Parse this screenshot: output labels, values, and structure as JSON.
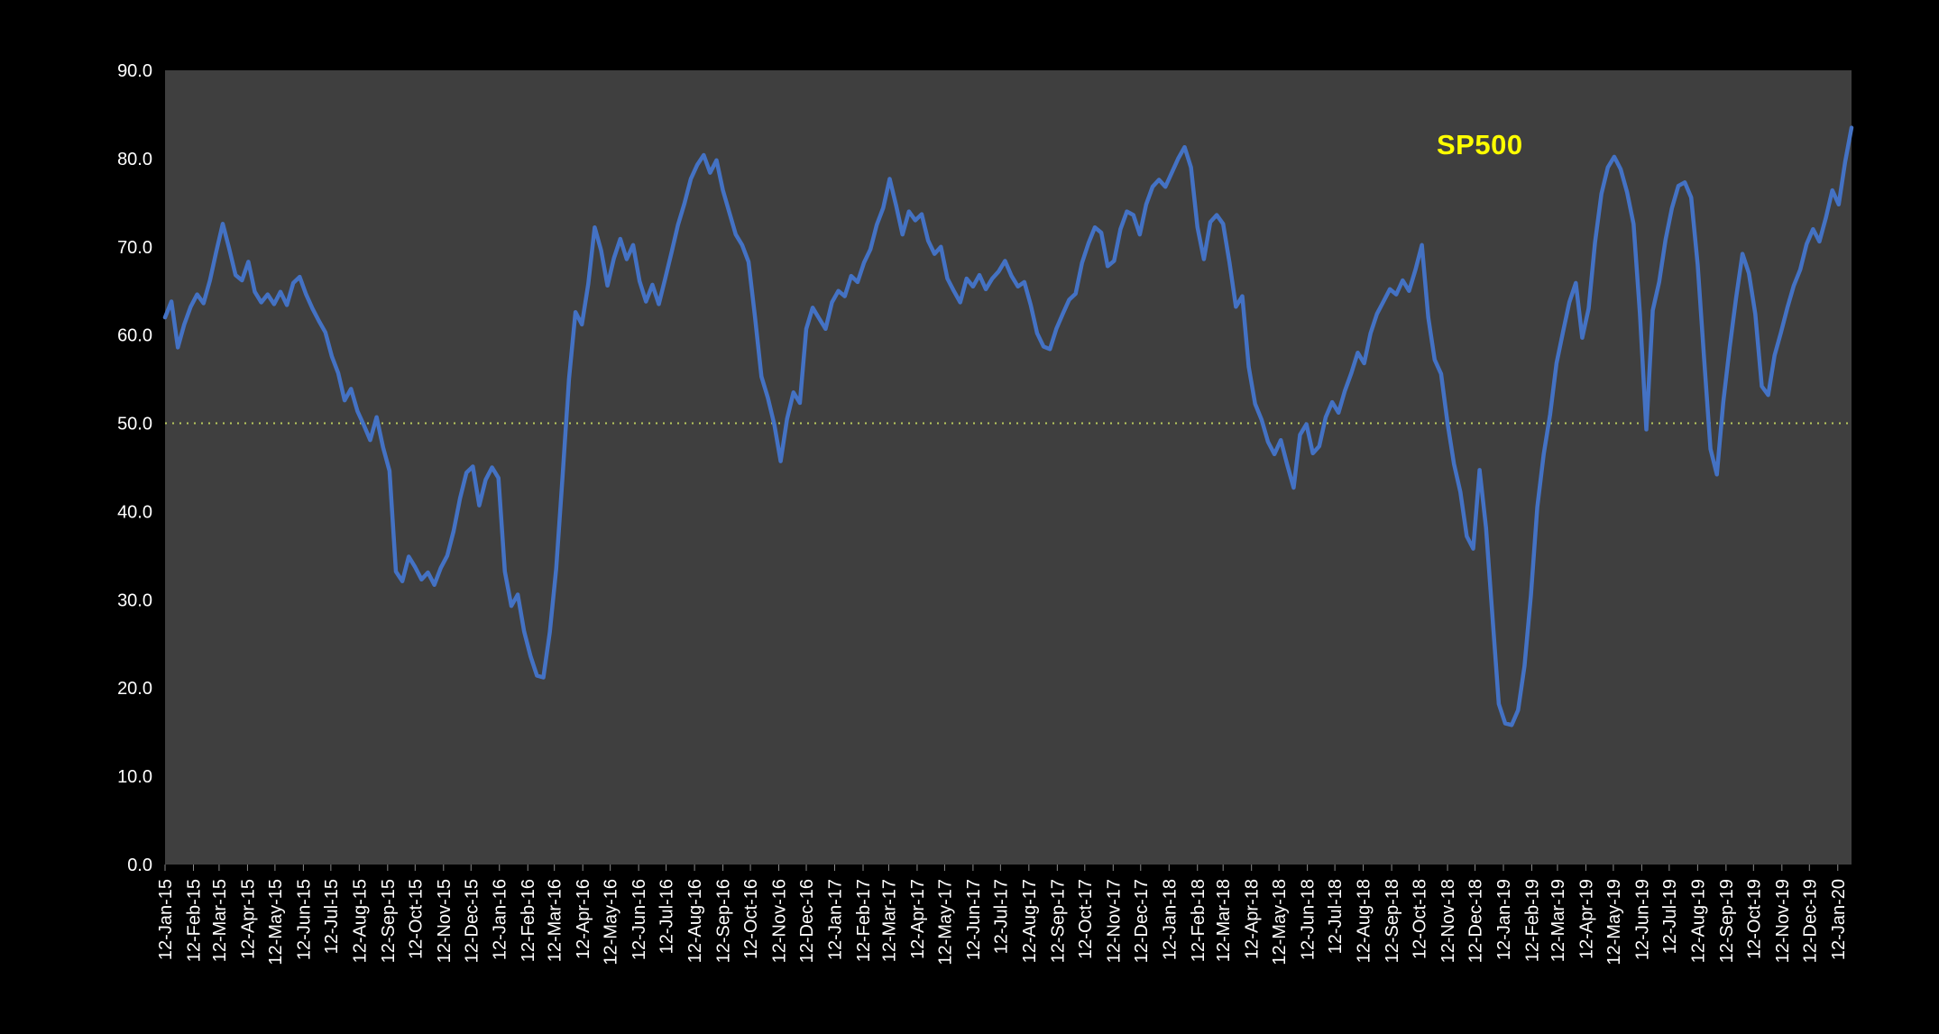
{
  "chart_data": {
    "type": "line",
    "title": "",
    "ylim": [
      0,
      90
    ],
    "outer_bg": "#000000",
    "plot_bg": "#3F3F3F",
    "tick_label_color": "#FFFFFF",
    "tick_mark_color": "#8A8A8A",
    "legend_position": "inside-top-right",
    "grid": "off",
    "series_label": {
      "text": "SP500",
      "color": "#FFFF00"
    },
    "reference_line": {
      "value": 50.0,
      "color": "#B9C95E",
      "style": "dotted"
    },
    "y_tick_labels": [
      "0.0",
      "10.0",
      "20.0",
      "30.0",
      "40.0",
      "50.0",
      "60.0",
      "70.0",
      "80.0",
      "90.0"
    ],
    "x_tick_labels": [
      "12-Jan-15",
      "12-Feb-15",
      "12-Mar-15",
      "12-Apr-15",
      "12-May-15",
      "12-Jun-15",
      "12-Jul-15",
      "12-Aug-15",
      "12-Sep-15",
      "12-Oct-15",
      "12-Nov-15",
      "12-Dec-15",
      "12-Jan-16",
      "12-Feb-16",
      "12-Mar-16",
      "12-Apr-16",
      "12-May-16",
      "12-Jun-16",
      "12-Jul-16",
      "12-Aug-16",
      "12-Sep-16",
      "12-Oct-16",
      "12-Nov-16",
      "12-Dec-16",
      "12-Jan-17",
      "12-Feb-17",
      "12-Mar-17",
      "12-Apr-17",
      "12-May-17",
      "12-Jun-17",
      "12-Jul-17",
      "12-Aug-17",
      "12-Sep-17",
      "12-Oct-17",
      "12-Nov-17",
      "12-Dec-17",
      "12-Jan-18",
      "12-Feb-18",
      "12-Mar-18",
      "12-Apr-18",
      "12-May-18",
      "12-Jun-18",
      "12-Jul-18",
      "12-Aug-18",
      "12-Sep-18",
      "12-Oct-18",
      "12-Nov-18",
      "12-Dec-18",
      "12-Jan-19",
      "12-Feb-19",
      "12-Mar-19",
      "12-Apr-19",
      "12-May-19",
      "12-Jun-19",
      "12-Jul-19",
      "12-Aug-19",
      "12-Sep-19",
      "12-Oct-19",
      "12-Nov-19",
      "12-Dec-19",
      "12-Jan-20"
    ],
    "series": [
      {
        "name": "SP500",
        "color": "#4472C4",
        "start_date": "2015-01-12",
        "step_days": 7,
        "values": [
          62.0,
          63.8,
          58.6,
          61.2,
          63.2,
          64.6,
          63.6,
          66.2,
          69.5,
          72.6,
          69.8,
          66.8,
          66.2,
          68.3,
          64.9,
          63.7,
          64.6,
          63.5,
          64.9,
          63.4,
          65.9,
          66.6,
          64.6,
          63.0,
          61.6,
          60.3,
          57.6,
          55.7,
          52.6,
          53.9,
          51.4,
          49.8,
          48.1,
          50.7,
          47.3,
          44.6,
          33.2,
          32.1,
          34.9,
          33.7,
          32.3,
          33.1,
          31.7,
          33.6,
          35.0,
          37.8,
          41.5,
          44.4,
          45.1,
          40.7,
          43.6,
          45.0,
          43.8,
          33.2,
          29.3,
          30.6,
          26.4,
          23.6,
          21.4,
          21.2,
          26.3,
          33.5,
          44.0,
          55.0,
          62.6,
          61.2,
          65.8,
          72.2,
          69.6,
          65.6,
          68.7,
          70.9,
          68.6,
          70.2,
          66.1,
          63.8,
          65.7,
          63.5,
          66.4,
          69.4,
          72.5,
          74.9,
          77.7,
          79.3,
          80.4,
          78.4,
          79.8,
          76.4,
          73.9,
          71.4,
          70.2,
          68.3,
          62.1,
          55.3,
          52.9,
          49.9,
          45.7,
          50.5,
          53.5,
          52.3,
          60.7,
          63.1,
          61.9,
          60.7,
          63.7,
          65.0,
          64.4,
          66.7,
          66.0,
          68.2,
          69.7,
          72.5,
          74.4,
          77.7,
          74.7,
          71.4,
          74.0,
          73.0,
          73.7,
          70.7,
          69.2,
          70.0,
          66.4,
          65.0,
          63.7,
          66.4,
          65.5,
          66.8,
          65.2,
          66.4,
          67.2,
          68.4,
          66.7,
          65.5,
          66.0,
          63.4,
          60.2,
          58.7,
          58.4,
          60.7,
          62.4,
          64.0,
          64.7,
          68.2,
          70.4,
          72.2,
          71.6,
          67.8,
          68.4,
          72.0,
          74.0,
          73.6,
          71.4,
          74.8,
          76.8,
          77.6,
          76.8,
          78.4,
          80.0,
          81.3,
          79.0,
          72.2,
          68.6,
          72.8,
          73.6,
          72.6,
          68.2,
          63.2,
          64.4,
          56.4,
          52.2,
          50.4,
          47.9,
          46.5,
          48.1,
          45.3,
          42.7,
          48.7,
          49.9,
          46.6,
          47.4,
          50.7,
          52.4,
          51.2,
          53.7,
          55.7,
          58.0,
          56.8,
          60.2,
          62.4,
          63.8,
          65.2,
          64.6,
          66.2,
          65.0,
          67.4,
          70.2,
          62.0,
          57.2,
          55.6,
          50.0,
          45.4,
          42.2,
          37.2,
          35.8,
          44.7,
          38.2,
          28.2,
          18.2,
          16.0,
          15.8,
          17.5,
          22.5,
          30.5,
          40.5,
          46.5,
          51.0,
          56.8,
          60.3,
          63.7,
          65.9,
          59.7,
          63.0,
          70.5,
          76.0,
          79.0,
          80.2,
          78.8,
          76.2,
          72.6,
          62.4,
          49.3,
          62.8,
          66.0,
          70.8,
          74.4,
          76.9,
          77.3,
          75.6,
          68.0,
          57.4,
          47.1,
          44.2,
          52.4,
          58.6,
          64.2,
          69.2,
          67.0,
          62.4,
          54.2,
          53.2,
          57.7,
          60.3,
          63.1,
          65.6,
          67.4,
          70.3,
          72.0,
          70.6,
          73.3,
          76.4,
          74.8,
          79.6,
          83.5
        ]
      }
    ]
  }
}
